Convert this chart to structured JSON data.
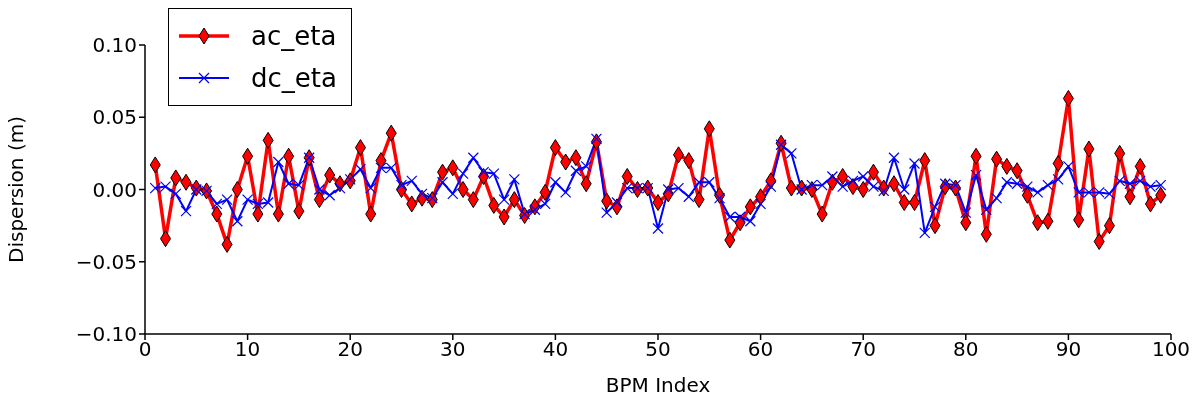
{
  "chart_data": {
    "type": "line",
    "xlabel": "BPM Index",
    "ylabel": "Dispersion (m)",
    "x": [
      1,
      2,
      3,
      4,
      5,
      6,
      7,
      8,
      9,
      10,
      11,
      12,
      13,
      14,
      15,
      16,
      17,
      18,
      19,
      20,
      21,
      22,
      23,
      24,
      25,
      26,
      27,
      28,
      29,
      30,
      31,
      32,
      33,
      34,
      35,
      36,
      37,
      38,
      39,
      40,
      41,
      42,
      43,
      44,
      45,
      46,
      47,
      48,
      49,
      50,
      51,
      52,
      53,
      54,
      55,
      56,
      57,
      58,
      59,
      60,
      61,
      62,
      63,
      64,
      65,
      66,
      67,
      68,
      69,
      70,
      71,
      72,
      73,
      74,
      75,
      76,
      77,
      78,
      79,
      80,
      81,
      82,
      83,
      84,
      85,
      86,
      87,
      88,
      89,
      90,
      91,
      92,
      93,
      94,
      95,
      96,
      97,
      98,
      99
    ],
    "series": [
      {
        "name": "ac_eta",
        "color": "#ff0000",
        "marker": "diamond",
        "values": [
          0.017,
          -0.034,
          0.008,
          0.005,
          0.001,
          -0.001,
          -0.017,
          -0.038,
          0.0,
          0.023,
          -0.017,
          0.034,
          -0.017,
          0.023,
          -0.015,
          0.022,
          -0.007,
          0.01,
          0.004,
          0.006,
          0.029,
          -0.017,
          0.02,
          0.039,
          0.0,
          -0.01,
          -0.006,
          -0.007,
          0.012,
          0.015,
          0.0,
          -0.007,
          0.009,
          -0.011,
          -0.019,
          -0.007,
          -0.018,
          -0.012,
          -0.002,
          0.029,
          0.019,
          0.022,
          0.004,
          0.033,
          -0.008,
          -0.012,
          0.009,
          0.0,
          0.001,
          -0.009,
          -0.003,
          0.024,
          0.02,
          -0.007,
          0.042,
          -0.004,
          -0.035,
          -0.023,
          -0.012,
          -0.005,
          0.006,
          0.032,
          0.001,
          0.001,
          0.0,
          -0.017,
          0.005,
          0.009,
          0.002,
          0.0,
          0.012,
          0.001,
          0.004,
          -0.009,
          -0.009,
          0.02,
          -0.025,
          0.002,
          0.001,
          -0.023,
          0.023,
          -0.031,
          0.021,
          0.016,
          0.013,
          -0.004,
          -0.023,
          -0.022,
          0.018,
          0.063,
          -0.021,
          0.028,
          -0.036,
          -0.025,
          0.025,
          -0.005,
          0.016,
          -0.01,
          -0.004
        ]
      },
      {
        "name": "dc_eta",
        "color": "#0000ff",
        "marker": "cross",
        "values": [
          0.001,
          0.002,
          -0.003,
          -0.015,
          0.0,
          -0.001,
          -0.01,
          -0.007,
          -0.022,
          -0.007,
          -0.01,
          -0.009,
          0.019,
          0.004,
          0.003,
          0.022,
          0.0,
          -0.004,
          0.001,
          0.007,
          0.014,
          0.001,
          0.015,
          0.015,
          0.003,
          0.006,
          -0.003,
          -0.006,
          0.005,
          -0.003,
          0.011,
          0.022,
          0.012,
          0.011,
          -0.007,
          0.007,
          -0.017,
          -0.014,
          -0.01,
          0.005,
          -0.002,
          0.013,
          0.016,
          0.035,
          -0.016,
          -0.009,
          0.001,
          0.001,
          0.001,
          -0.027,
          0.0,
          0.001,
          -0.005,
          0.005,
          0.005,
          -0.006,
          -0.019,
          -0.019,
          -0.022,
          -0.01,
          0.002,
          0.031,
          0.025,
          0.0,
          0.003,
          0.003,
          0.009,
          0.002,
          0.006,
          0.009,
          0.002,
          -0.001,
          0.022,
          0.0,
          0.018,
          -0.03,
          -0.012,
          0.004,
          0.003,
          -0.016,
          0.01,
          -0.014,
          -0.006,
          0.005,
          0.004,
          0.002,
          -0.002,
          0.003,
          0.007,
          0.016,
          -0.002,
          -0.002,
          -0.002,
          -0.003,
          0.006,
          0.004,
          0.006,
          0.002,
          0.003
        ]
      }
    ],
    "xlim": [
      0,
      100
    ],
    "xticks": [
      0,
      10,
      20,
      30,
      40,
      50,
      60,
      70,
      80,
      90,
      100
    ],
    "ylim": [
      -0.1,
      0.1
    ],
    "yticks": [
      {
        "value": -0.1,
        "label": "−0.10"
      },
      {
        "value": -0.05,
        "label": "−0.05"
      },
      {
        "value": 0,
        "label": "0.00"
      },
      {
        "value": 0.05,
        "label": "0.05"
      },
      {
        "value": 0.1,
        "label": "0.10"
      }
    ],
    "grid": false,
    "legend": "top left",
    "line_style": "solid"
  }
}
